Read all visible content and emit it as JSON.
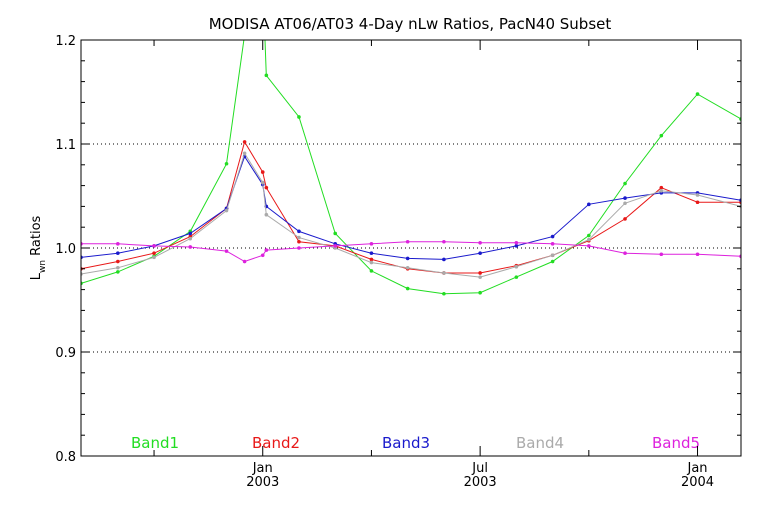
{
  "chart_data": {
    "type": "line",
    "title": "MODISA AT06/AT03 4-Day nLw Ratios, PacN40 Subset",
    "ylabel": {
      "main": "L",
      "sub": "wn",
      "rest": " Ratios"
    },
    "xlabel": "",
    "ylim": [
      0.8,
      1.2
    ],
    "xlim": [
      2002.582,
      2004.1
    ],
    "grid": "horizontal dotted",
    "yticks": [
      {
        "value": 0.8,
        "label": "0.8"
      },
      {
        "value": 0.9,
        "label": "0.9"
      },
      {
        "value": 1.0,
        "label": "1.0"
      },
      {
        "value": 1.1,
        "label": "1.1"
      },
      {
        "value": 1.2,
        "label": "1.2"
      }
    ],
    "xticks_major": [
      {
        "value": 2003.0,
        "line1": "Jan",
        "line2": "2003"
      },
      {
        "value": 2003.5,
        "line1": "Jul",
        "line2": "2003"
      },
      {
        "value": 2004.0,
        "line1": "Jan",
        "line2": "2004"
      }
    ],
    "xticks_minor": [
      2002.75,
      2003.25,
      2003.75
    ],
    "x": [
      2002.582,
      2002.6667,
      2002.75,
      2002.8333,
      2002.9167,
      2002.9583,
      2003.0,
      2003.0083,
      2003.0833,
      2003.1667,
      2003.25,
      2003.3333,
      2003.4167,
      2003.5,
      2003.5833,
      2003.6667,
      2003.75,
      2003.8333,
      2003.9167,
      2004.0,
      2004.1
    ],
    "legend_position": "bottom",
    "series": [
      {
        "name": "Band1",
        "color": "#22dd22",
        "values": [
          0.966,
          0.977,
          0.992,
          1.016,
          1.081,
          1.205,
          1.26,
          1.166,
          1.126,
          1.014,
          0.978,
          0.961,
          0.956,
          0.957,
          0.972,
          0.987,
          1.012,
          1.062,
          1.108,
          1.148,
          1.124
        ]
      },
      {
        "name": "Band2",
        "color": "#e81818",
        "values": [
          0.98,
          0.987,
          0.995,
          1.011,
          1.038,
          1.102,
          1.073,
          1.058,
          1.006,
          1.002,
          0.989,
          0.98,
          0.976,
          0.976,
          0.983,
          0.993,
          1.007,
          1.028,
          1.058,
          1.044,
          1.044
        ]
      },
      {
        "name": "Band3",
        "color": "#1a1acc",
        "values": [
          0.991,
          0.995,
          1.002,
          1.014,
          1.038,
          1.088,
          1.061,
          1.04,
          1.016,
          1.004,
          0.995,
          0.99,
          0.989,
          0.995,
          1.002,
          1.011,
          1.042,
          1.048,
          1.053,
          1.053,
          1.046
        ]
      },
      {
        "name": "Band4",
        "color": "#aaaaaa",
        "values": [
          0.975,
          0.981,
          0.991,
          1.009,
          1.036,
          1.091,
          1.063,
          1.032,
          1.01,
          1.0,
          0.986,
          0.981,
          0.976,
          0.972,
          0.982,
          0.993,
          1.008,
          1.043,
          1.055,
          1.051,
          1.04
        ]
      },
      {
        "name": "Band5",
        "color": "#dd22dd",
        "values": [
          1.004,
          1.004,
          1.002,
          1.001,
          0.997,
          0.987,
          0.993,
          0.998,
          1.0,
          1.002,
          1.004,
          1.006,
          1.006,
          1.005,
          1.005,
          1.004,
          1.002,
          0.995,
          0.994,
          0.994,
          0.992
        ]
      }
    ]
  }
}
